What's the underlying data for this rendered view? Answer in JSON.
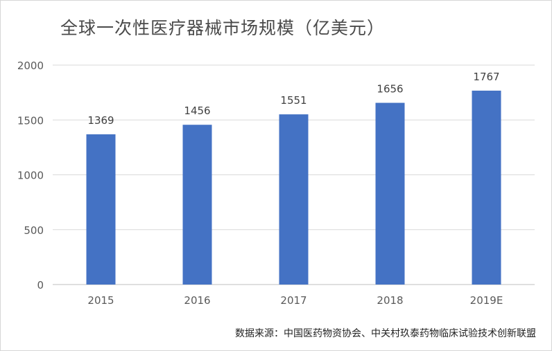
{
  "chart_data": {
    "type": "bar",
    "title": "全球一次性医疗器械市场规模（亿美元）",
    "categories": [
      "2015",
      "2016",
      "2017",
      "2018",
      "2019E"
    ],
    "values": [
      1369,
      1456,
      1551,
      1656,
      1767
    ],
    "ylim": [
      0,
      2000
    ],
    "yticks": [
      "0",
      "500",
      "1000",
      "1500",
      "2000"
    ],
    "grid": true,
    "bar_color": "#4472c4",
    "data_labels": true
  },
  "source": "数据来源：中国医药物资协会、中关村玖泰药物临床试验技术创新联盟"
}
